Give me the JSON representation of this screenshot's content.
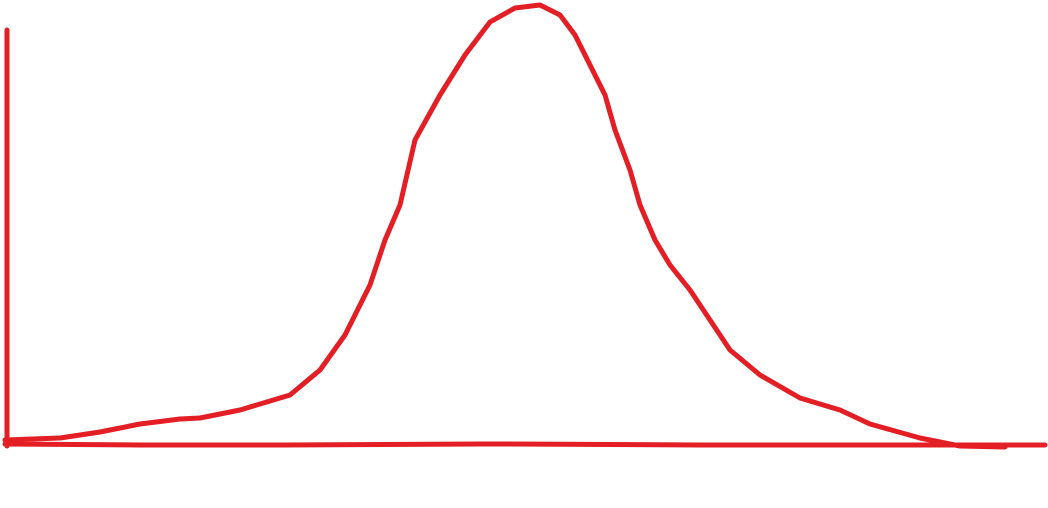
{
  "diagram": {
    "kind": "hand-drawn bell curve sketch",
    "stroke_color": "#e31e24",
    "background_color": "#ffffff"
  }
}
